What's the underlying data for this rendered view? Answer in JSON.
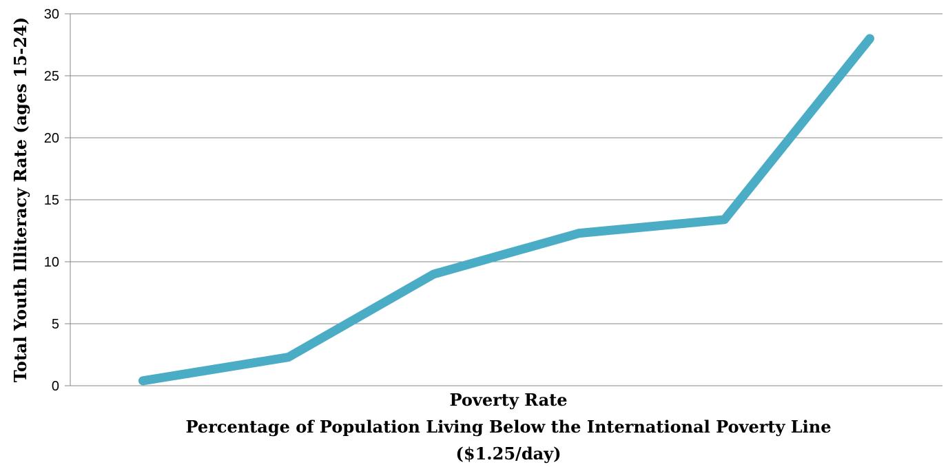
{
  "chart_data": {
    "type": "line",
    "title": "",
    "ylabel": "Total Youth Illiteracy Rate (ages 15-24)",
    "xlabel_lines": [
      "Poverty Rate",
      "Percentage of Population Living Below the International Poverty Line",
      "($1.25/day)"
    ],
    "ylim": [
      0,
      30
    ],
    "yticks": [
      0,
      5,
      10,
      15,
      20,
      25,
      30
    ],
    "grid": true,
    "legend": "none",
    "series": [
      {
        "values": [
          0.4,
          2.3,
          9.0,
          12.3,
          13.4,
          28.0
        ],
        "color": "#4bacc6"
      }
    ]
  }
}
